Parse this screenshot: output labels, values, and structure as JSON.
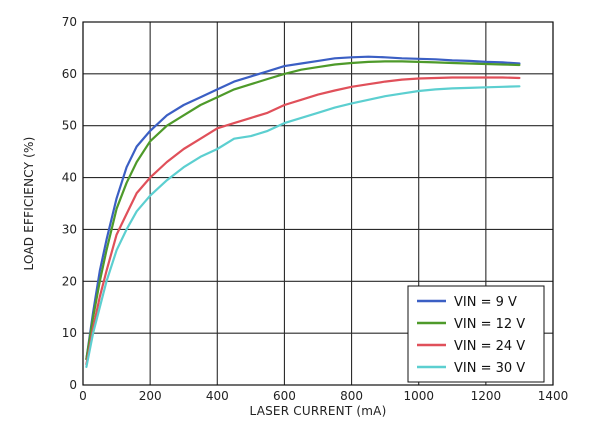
{
  "chart_data": {
    "type": "line",
    "title": "",
    "xlabel": "LASER CURRENT (mA)",
    "ylabel": "LOAD EFFICIENCY (%)",
    "xlim": [
      0,
      1400
    ],
    "ylim": [
      0,
      70
    ],
    "xticks": [
      0,
      200,
      400,
      600,
      800,
      1000,
      1200,
      1400
    ],
    "yticks": [
      0,
      10,
      20,
      30,
      40,
      50,
      60,
      70
    ],
    "grid": true,
    "legend_position": "bottom-right",
    "series": [
      {
        "name": "VIN = 9 V",
        "color": "#3b5fc4",
        "points": [
          [
            10,
            5
          ],
          [
            30,
            14
          ],
          [
            50,
            22
          ],
          [
            70,
            28
          ],
          [
            100,
            36
          ],
          [
            130,
            42
          ],
          [
            160,
            46
          ],
          [
            200,
            49
          ],
          [
            250,
            52
          ],
          [
            300,
            54
          ],
          [
            350,
            55.5
          ],
          [
            400,
            57
          ],
          [
            450,
            58.5
          ],
          [
            500,
            59.5
          ],
          [
            550,
            60.5
          ],
          [
            600,
            61.5
          ],
          [
            650,
            62
          ],
          [
            700,
            62.5
          ],
          [
            750,
            63
          ],
          [
            800,
            63.2
          ],
          [
            850,
            63.3
          ],
          [
            900,
            63.2
          ],
          [
            950,
            63
          ],
          [
            1000,
            62.9
          ],
          [
            1050,
            62.8
          ],
          [
            1100,
            62.6
          ],
          [
            1150,
            62.5
          ],
          [
            1200,
            62.3
          ],
          [
            1250,
            62.2
          ],
          [
            1300,
            62
          ]
        ]
      },
      {
        "name": "VIN = 12 V",
        "color": "#4e9a2a",
        "points": [
          [
            10,
            5
          ],
          [
            30,
            13
          ],
          [
            50,
            20
          ],
          [
            70,
            26
          ],
          [
            100,
            34
          ],
          [
            130,
            39
          ],
          [
            160,
            43
          ],
          [
            200,
            47
          ],
          [
            250,
            50
          ],
          [
            300,
            52
          ],
          [
            350,
            54
          ],
          [
            400,
            55.5
          ],
          [
            450,
            57
          ],
          [
            500,
            58
          ],
          [
            550,
            59
          ],
          [
            600,
            60
          ],
          [
            650,
            60.8
          ],
          [
            700,
            61.3
          ],
          [
            750,
            61.8
          ],
          [
            800,
            62.1
          ],
          [
            850,
            62.3
          ],
          [
            900,
            62.4
          ],
          [
            950,
            62.4
          ],
          [
            1000,
            62.3
          ],
          [
            1050,
            62.2
          ],
          [
            1100,
            62.1
          ],
          [
            1150,
            62
          ],
          [
            1200,
            61.9
          ],
          [
            1250,
            61.8
          ],
          [
            1300,
            61.7
          ]
        ]
      },
      {
        "name": "VIN = 24 V",
        "color": "#e0505a",
        "points": [
          [
            10,
            4
          ],
          [
            30,
            11
          ],
          [
            50,
            17
          ],
          [
            70,
            22
          ],
          [
            100,
            29
          ],
          [
            130,
            33
          ],
          [
            160,
            37
          ],
          [
            200,
            40
          ],
          [
            250,
            43
          ],
          [
            300,
            45.5
          ],
          [
            350,
            47.5
          ],
          [
            400,
            49.5
          ],
          [
            450,
            50.5
          ],
          [
            500,
            51.5
          ],
          [
            550,
            52.5
          ],
          [
            600,
            54
          ],
          [
            650,
            55
          ],
          [
            700,
            56
          ],
          [
            750,
            56.8
          ],
          [
            800,
            57.5
          ],
          [
            850,
            58
          ],
          [
            900,
            58.5
          ],
          [
            950,
            58.9
          ],
          [
            1000,
            59.1
          ],
          [
            1050,
            59.2
          ],
          [
            1100,
            59.3
          ],
          [
            1150,
            59.3
          ],
          [
            1200,
            59.3
          ],
          [
            1250,
            59.3
          ],
          [
            1300,
            59.2
          ]
        ]
      },
      {
        "name": "VIN = 30 V",
        "color": "#5ccfd0",
        "points": [
          [
            10,
            3.5
          ],
          [
            30,
            10
          ],
          [
            50,
            15
          ],
          [
            70,
            20
          ],
          [
            100,
            26
          ],
          [
            130,
            30
          ],
          [
            160,
            33.5
          ],
          [
            200,
            36.5
          ],
          [
            250,
            39.5
          ],
          [
            300,
            42
          ],
          [
            350,
            44
          ],
          [
            400,
            45.5
          ],
          [
            450,
            47.5
          ],
          [
            500,
            48
          ],
          [
            550,
            49
          ],
          [
            600,
            50.5
          ],
          [
            650,
            51.5
          ],
          [
            700,
            52.5
          ],
          [
            750,
            53.5
          ],
          [
            800,
            54.3
          ],
          [
            850,
            55
          ],
          [
            900,
            55.7
          ],
          [
            950,
            56.2
          ],
          [
            1000,
            56.7
          ],
          [
            1050,
            57
          ],
          [
            1100,
            57.2
          ],
          [
            1150,
            57.3
          ],
          [
            1200,
            57.4
          ],
          [
            1250,
            57.5
          ],
          [
            1300,
            57.6
          ]
        ]
      }
    ]
  }
}
